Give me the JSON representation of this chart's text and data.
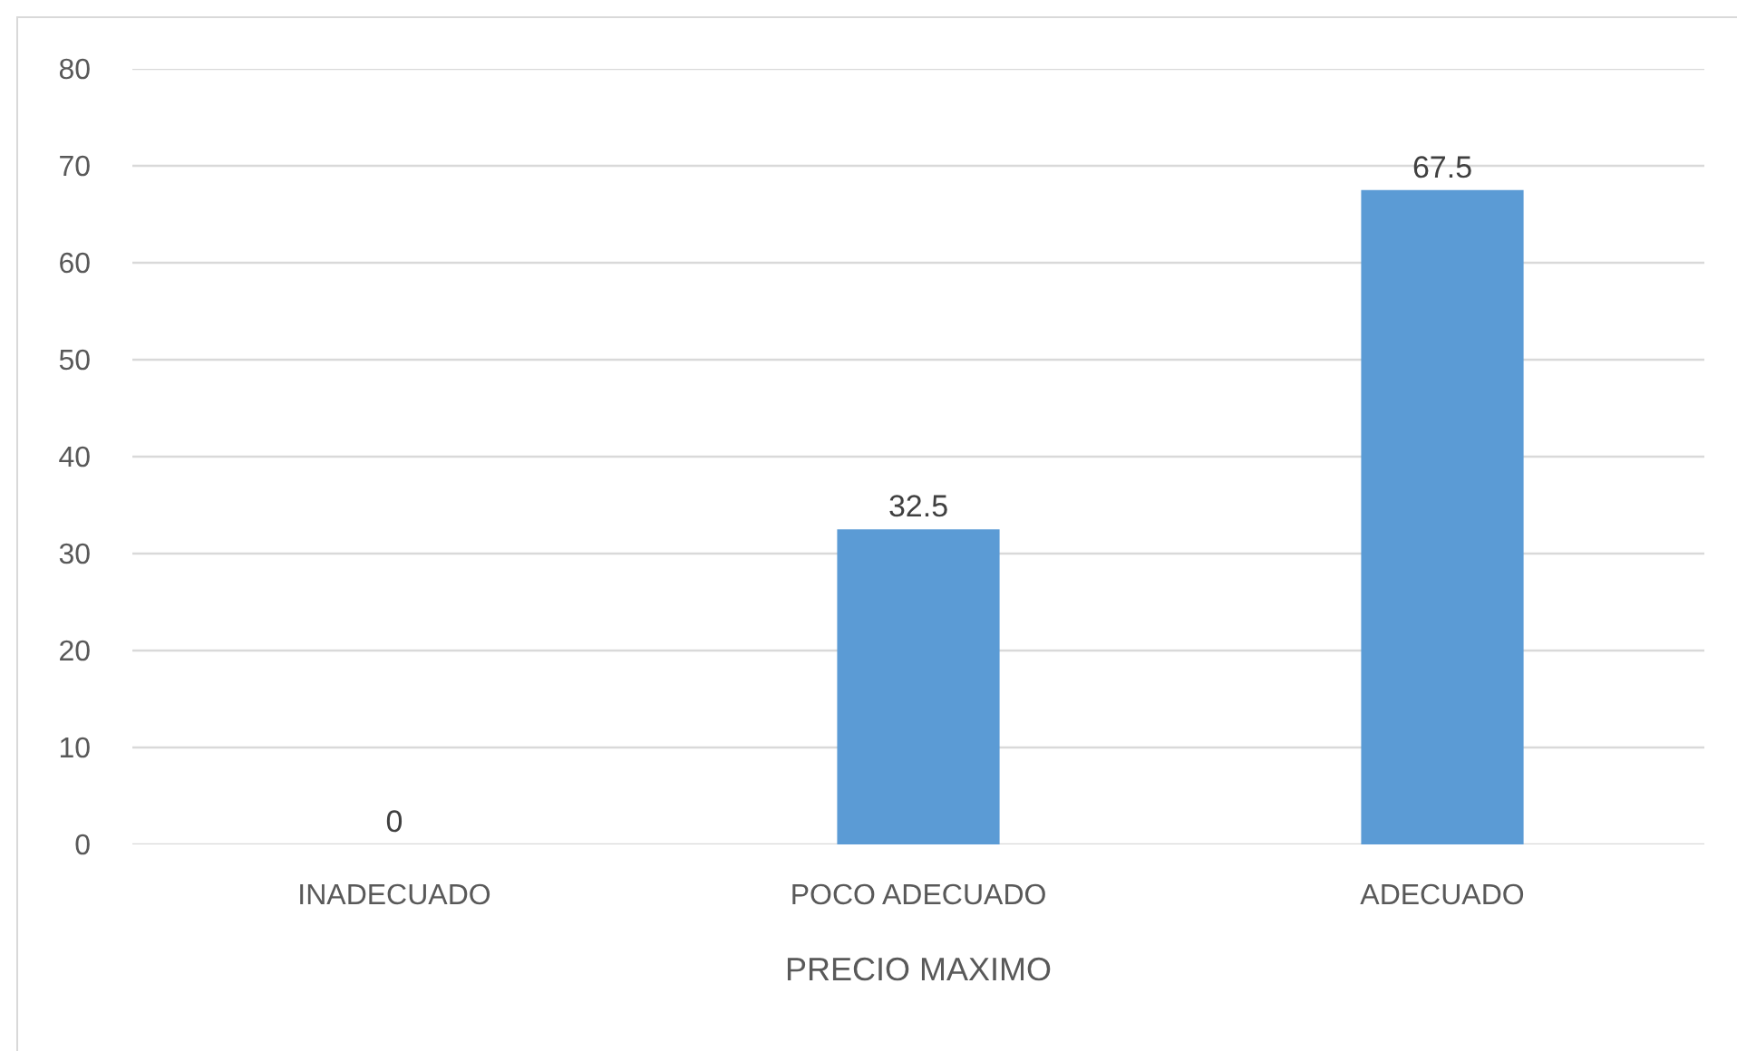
{
  "chart_data": {
    "type": "bar",
    "xlabel": "PRECIO MAXIMO",
    "categories": [
      "INADECUADO",
      "POCO ADECUADO",
      "ADECUADO"
    ],
    "values": [
      0,
      32.5,
      67.5
    ],
    "color": "#5b9bd5",
    "ylim": [
      0,
      80
    ],
    "yticks": [
      0,
      10,
      20,
      30,
      40,
      50,
      60,
      70,
      80
    ],
    "grid": "y",
    "data_labels": true
  }
}
